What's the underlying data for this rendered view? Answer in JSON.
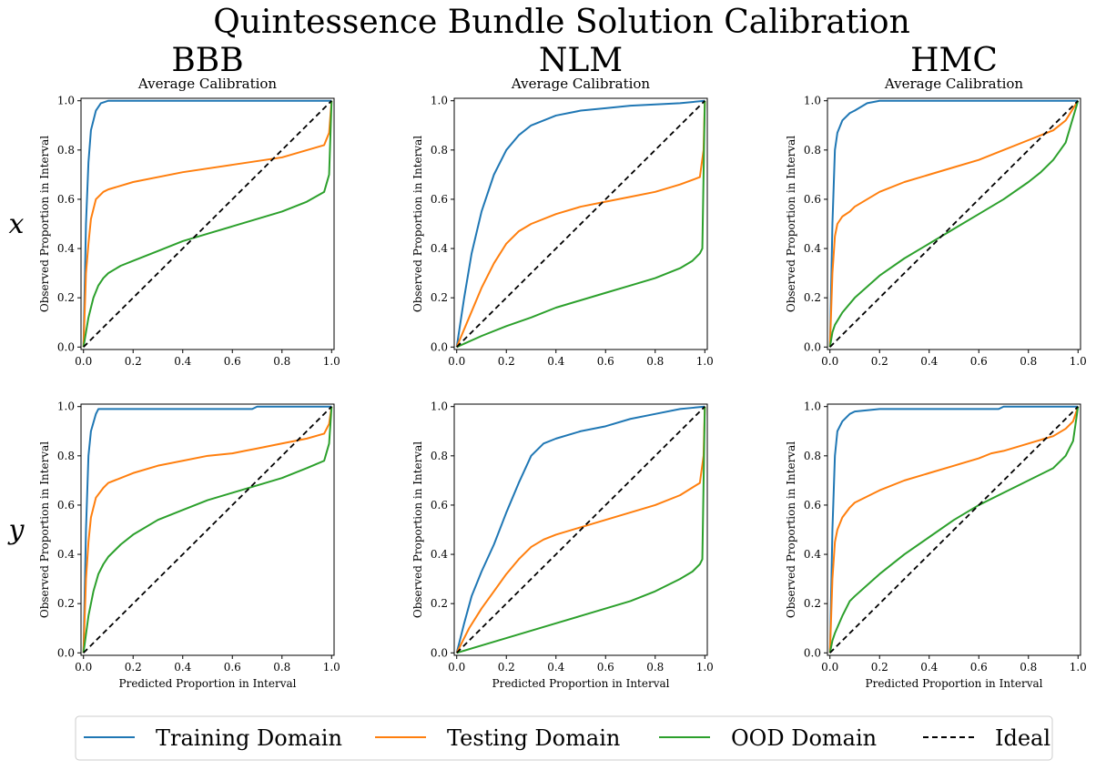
{
  "figure": {
    "title": "Quintessence Bundle Solution Calibration",
    "columns": [
      "BBB",
      "NLM",
      "HMC"
    ],
    "rows": [
      "x",
      "y"
    ],
    "subplot_title": "Average Calibration",
    "xlabel": "Predicted Proportion in Interval",
    "ylabel": "Observed Proportion in Interval",
    "ticks": [
      "0.0",
      "0.2",
      "0.4",
      "0.6",
      "0.8",
      "1.0"
    ]
  },
  "legend": {
    "items": [
      {
        "label": "Training Domain",
        "color": "#1f77b4",
        "dash": false
      },
      {
        "label": "Testing Domain",
        "color": "#ff7f0e",
        "dash": false
      },
      {
        "label": "OOD Domain",
        "color": "#2ca02c",
        "dash": false
      },
      {
        "label": "Ideal",
        "color": "#000000",
        "dash": true
      }
    ]
  },
  "chart_data": [
    {
      "type": "line",
      "method": "BBB",
      "variable": "x",
      "title": "Average Calibration",
      "xlim": [
        0,
        1
      ],
      "ylim": [
        0,
        1
      ],
      "series": [
        {
          "name": "Training Domain",
          "color": "#1f77b4",
          "x": [
            0,
            0.01,
            0.02,
            0.03,
            0.05,
            0.07,
            0.1,
            0.2,
            0.5,
            1.0
          ],
          "y": [
            0,
            0.5,
            0.75,
            0.88,
            0.96,
            0.99,
            1.0,
            1.0,
            1.0,
            1.0
          ]
        },
        {
          "name": "Testing Domain",
          "color": "#ff7f0e",
          "x": [
            0,
            0.01,
            0.02,
            0.03,
            0.05,
            0.08,
            0.1,
            0.2,
            0.4,
            0.6,
            0.8,
            0.97,
            0.99,
            1.0
          ],
          "y": [
            0,
            0.3,
            0.42,
            0.52,
            0.6,
            0.63,
            0.64,
            0.67,
            0.71,
            0.74,
            0.77,
            0.82,
            0.87,
            1.0
          ]
        },
        {
          "name": "OOD Domain",
          "color": "#2ca02c",
          "x": [
            0,
            0.02,
            0.04,
            0.06,
            0.08,
            0.1,
            0.15,
            0.2,
            0.3,
            0.4,
            0.5,
            0.6,
            0.7,
            0.8,
            0.9,
            0.97,
            0.99,
            1.0
          ],
          "y": [
            0,
            0.12,
            0.2,
            0.25,
            0.28,
            0.3,
            0.33,
            0.35,
            0.39,
            0.43,
            0.46,
            0.49,
            0.52,
            0.55,
            0.59,
            0.63,
            0.7,
            1.0
          ]
        },
        {
          "name": "Ideal",
          "color": "#000000",
          "dash": true,
          "x": [
            0,
            1
          ],
          "y": [
            0,
            1
          ]
        }
      ]
    },
    {
      "type": "line",
      "method": "NLM",
      "variable": "x",
      "title": "Average Calibration",
      "xlim": [
        0,
        1
      ],
      "ylim": [
        0,
        1
      ],
      "series": [
        {
          "name": "Training Domain",
          "color": "#1f77b4",
          "x": [
            0,
            0.03,
            0.06,
            0.1,
            0.15,
            0.2,
            0.25,
            0.3,
            0.4,
            0.5,
            0.6,
            0.7,
            0.8,
            0.9,
            1.0
          ],
          "y": [
            0,
            0.2,
            0.38,
            0.55,
            0.7,
            0.8,
            0.86,
            0.9,
            0.94,
            0.96,
            0.97,
            0.98,
            0.985,
            0.99,
            1.0
          ]
        },
        {
          "name": "Testing Domain",
          "color": "#ff7f0e",
          "x": [
            0,
            0.05,
            0.1,
            0.15,
            0.2,
            0.25,
            0.3,
            0.4,
            0.5,
            0.6,
            0.7,
            0.8,
            0.9,
            0.98,
            0.995,
            1.0
          ],
          "y": [
            0,
            0.12,
            0.24,
            0.34,
            0.42,
            0.47,
            0.5,
            0.54,
            0.57,
            0.59,
            0.61,
            0.63,
            0.66,
            0.69,
            0.8,
            1.0
          ]
        },
        {
          "name": "OOD Domain",
          "color": "#2ca02c",
          "x": [
            0,
            0.1,
            0.2,
            0.3,
            0.4,
            0.5,
            0.6,
            0.7,
            0.8,
            0.9,
            0.95,
            0.98,
            0.99,
            1.0
          ],
          "y": [
            0,
            0.045,
            0.085,
            0.12,
            0.16,
            0.19,
            0.22,
            0.25,
            0.28,
            0.32,
            0.35,
            0.38,
            0.4,
            1.0
          ]
        },
        {
          "name": "Ideal",
          "color": "#000000",
          "dash": true,
          "x": [
            0,
            1
          ],
          "y": [
            0,
            1
          ]
        }
      ]
    },
    {
      "type": "line",
      "method": "HMC",
      "variable": "x",
      "title": "Average Calibration",
      "xlim": [
        0,
        1
      ],
      "ylim": [
        0,
        1
      ],
      "series": [
        {
          "name": "Training Domain",
          "color": "#1f77b4",
          "x": [
            0,
            0.01,
            0.02,
            0.03,
            0.05,
            0.08,
            0.1,
            0.15,
            0.2,
            0.3,
            0.5,
            1.0
          ],
          "y": [
            0,
            0.5,
            0.8,
            0.87,
            0.92,
            0.95,
            0.96,
            0.99,
            1.0,
            1.0,
            1.0,
            1.0
          ]
        },
        {
          "name": "Testing Domain",
          "color": "#ff7f0e",
          "x": [
            0,
            0.01,
            0.02,
            0.03,
            0.05,
            0.08,
            0.1,
            0.15,
            0.2,
            0.3,
            0.4,
            0.5,
            0.6,
            0.7,
            0.8,
            0.9,
            0.95,
            1.0
          ],
          "y": [
            0,
            0.3,
            0.45,
            0.5,
            0.53,
            0.55,
            0.57,
            0.6,
            0.63,
            0.67,
            0.7,
            0.73,
            0.76,
            0.8,
            0.84,
            0.88,
            0.92,
            1.0
          ]
        },
        {
          "name": "OOD Domain",
          "color": "#2ca02c",
          "x": [
            0,
            0.01,
            0.02,
            0.05,
            0.1,
            0.2,
            0.3,
            0.4,
            0.5,
            0.6,
            0.7,
            0.8,
            0.85,
            0.9,
            0.95,
            1.0
          ],
          "y": [
            0,
            0.06,
            0.09,
            0.14,
            0.2,
            0.29,
            0.36,
            0.42,
            0.48,
            0.54,
            0.6,
            0.67,
            0.71,
            0.76,
            0.83,
            1.0
          ]
        },
        {
          "name": "Ideal",
          "color": "#000000",
          "dash": true,
          "x": [
            0,
            1
          ],
          "y": [
            0,
            1
          ]
        }
      ]
    },
    {
      "type": "line",
      "method": "BBB",
      "variable": "y",
      "title": "",
      "xlim": [
        0,
        1
      ],
      "ylim": [
        0,
        1
      ],
      "series": [
        {
          "name": "Training Domain",
          "color": "#1f77b4",
          "x": [
            0,
            0.01,
            0.02,
            0.03,
            0.05,
            0.06,
            0.1,
            0.5,
            0.6,
            0.68,
            0.7,
            1.0
          ],
          "y": [
            0,
            0.5,
            0.8,
            0.9,
            0.97,
            0.99,
            0.99,
            0.99,
            0.99,
            0.99,
            1.0,
            1.0
          ]
        },
        {
          "name": "Testing Domain",
          "color": "#ff7f0e",
          "x": [
            0,
            0.01,
            0.02,
            0.03,
            0.05,
            0.08,
            0.1,
            0.2,
            0.3,
            0.4,
            0.5,
            0.6,
            0.65,
            0.7,
            0.8,
            0.9,
            0.97,
            0.99,
            1.0
          ],
          "y": [
            0,
            0.3,
            0.45,
            0.55,
            0.63,
            0.67,
            0.69,
            0.73,
            0.76,
            0.78,
            0.8,
            0.81,
            0.82,
            0.83,
            0.85,
            0.87,
            0.89,
            0.93,
            1.0
          ]
        },
        {
          "name": "OOD Domain",
          "color": "#2ca02c",
          "x": [
            0,
            0.02,
            0.04,
            0.06,
            0.08,
            0.1,
            0.15,
            0.2,
            0.3,
            0.4,
            0.5,
            0.6,
            0.7,
            0.8,
            0.9,
            0.97,
            0.99,
            1.0
          ],
          "y": [
            0,
            0.15,
            0.25,
            0.32,
            0.36,
            0.39,
            0.44,
            0.48,
            0.54,
            0.58,
            0.62,
            0.65,
            0.68,
            0.71,
            0.75,
            0.78,
            0.85,
            1.0
          ]
        },
        {
          "name": "Ideal",
          "color": "#000000",
          "dash": true,
          "x": [
            0,
            1
          ],
          "y": [
            0,
            1
          ]
        }
      ]
    },
    {
      "type": "line",
      "method": "NLM",
      "variable": "y",
      "title": "",
      "xlim": [
        0,
        1
      ],
      "ylim": [
        0,
        1
      ],
      "series": [
        {
          "name": "Training Domain",
          "color": "#1f77b4",
          "x": [
            0,
            0.03,
            0.06,
            0.1,
            0.15,
            0.2,
            0.25,
            0.3,
            0.35,
            0.4,
            0.5,
            0.6,
            0.7,
            0.8,
            0.9,
            0.95,
            1.0
          ],
          "y": [
            0,
            0.12,
            0.23,
            0.33,
            0.44,
            0.57,
            0.69,
            0.8,
            0.85,
            0.87,
            0.9,
            0.92,
            0.95,
            0.97,
            0.99,
            0.995,
            1.0
          ]
        },
        {
          "name": "Testing Domain",
          "color": "#ff7f0e",
          "x": [
            0,
            0.05,
            0.1,
            0.15,
            0.2,
            0.25,
            0.3,
            0.35,
            0.4,
            0.5,
            0.6,
            0.7,
            0.8,
            0.9,
            0.98,
            0.995,
            1.0
          ],
          "y": [
            0,
            0.1,
            0.18,
            0.25,
            0.32,
            0.38,
            0.43,
            0.46,
            0.48,
            0.51,
            0.54,
            0.57,
            0.6,
            0.64,
            0.69,
            0.8,
            1.0
          ]
        },
        {
          "name": "OOD Domain",
          "color": "#2ca02c",
          "x": [
            0,
            0.1,
            0.2,
            0.3,
            0.4,
            0.5,
            0.6,
            0.7,
            0.8,
            0.9,
            0.95,
            0.98,
            0.99,
            1.0
          ],
          "y": [
            0,
            0.03,
            0.06,
            0.09,
            0.12,
            0.15,
            0.18,
            0.21,
            0.25,
            0.3,
            0.33,
            0.36,
            0.38,
            1.0
          ]
        },
        {
          "name": "Ideal",
          "color": "#000000",
          "dash": true,
          "x": [
            0,
            1
          ],
          "y": [
            0,
            1
          ]
        }
      ]
    },
    {
      "type": "line",
      "method": "HMC",
      "variable": "y",
      "title": "",
      "xlim": [
        0,
        1
      ],
      "ylim": [
        0,
        1
      ],
      "series": [
        {
          "name": "Training Domain",
          "color": "#1f77b4",
          "x": [
            0,
            0.01,
            0.02,
            0.03,
            0.05,
            0.08,
            0.1,
            0.2,
            0.4,
            0.6,
            0.68,
            0.7,
            1.0
          ],
          "y": [
            0,
            0.5,
            0.8,
            0.9,
            0.94,
            0.97,
            0.98,
            0.99,
            0.99,
            0.99,
            0.99,
            1.0,
            1.0
          ]
        },
        {
          "name": "Testing Domain",
          "color": "#ff7f0e",
          "x": [
            0,
            0.01,
            0.02,
            0.03,
            0.05,
            0.08,
            0.1,
            0.2,
            0.3,
            0.4,
            0.5,
            0.6,
            0.65,
            0.7,
            0.8,
            0.9,
            0.95,
            0.98,
            1.0
          ],
          "y": [
            0,
            0.3,
            0.45,
            0.5,
            0.55,
            0.59,
            0.61,
            0.66,
            0.7,
            0.73,
            0.76,
            0.79,
            0.81,
            0.82,
            0.85,
            0.88,
            0.91,
            0.94,
            1.0
          ]
        },
        {
          "name": "OOD Domain",
          "color": "#2ca02c",
          "x": [
            0,
            0.01,
            0.02,
            0.05,
            0.08,
            0.1,
            0.2,
            0.3,
            0.4,
            0.5,
            0.6,
            0.7,
            0.8,
            0.9,
            0.95,
            0.98,
            1.0
          ],
          "y": [
            0,
            0.05,
            0.08,
            0.15,
            0.21,
            0.23,
            0.32,
            0.4,
            0.47,
            0.54,
            0.6,
            0.65,
            0.7,
            0.75,
            0.8,
            0.86,
            1.0
          ]
        },
        {
          "name": "Ideal",
          "color": "#000000",
          "dash": true,
          "x": [
            0,
            1
          ],
          "y": [
            0,
            1
          ]
        }
      ]
    }
  ]
}
